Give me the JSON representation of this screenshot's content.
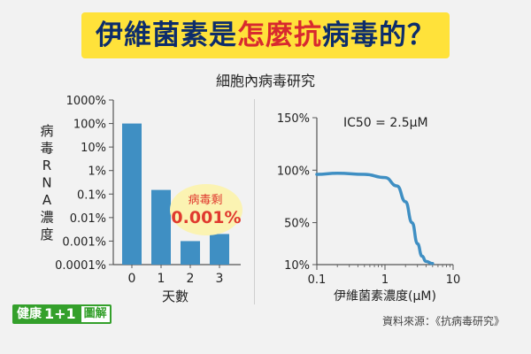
{
  "title": {
    "part1": "伊維菌素是",
    "part2": "怎麼抗",
    "part3": "病毒的？"
  },
  "subtitle": "細胞內病毒研究",
  "colors": {
    "bar": "#3f8fc3",
    "curve": "#3f8fc3",
    "title_navy": "#0d2d6b",
    "title_red": "#d8292f",
    "banner": "#ffe23a",
    "callout_red": "#e03a2f",
    "callout_bg": "#fbf3b2",
    "logo_green": "#34a02b"
  },
  "chart_data": [
    {
      "type": "bar",
      "categories": [
        "0",
        "1",
        "2",
        "3"
      ],
      "values": [
        100,
        0.15,
        0.001,
        0.002
      ],
      "yscale": "log",
      "ylim": [
        0.0001,
        1000
      ],
      "yticks": [
        "0.0001%",
        "0.001%",
        "0.01%",
        "0.1%",
        "1%",
        "10%",
        "100%",
        "1000%"
      ],
      "xlabel": "天數",
      "ylabel_chars": [
        "病",
        "毒",
        "R",
        "N",
        "A",
        "濃",
        "度"
      ],
      "annotation": {
        "label": "病毒剩",
        "value": "0.001%"
      }
    },
    {
      "type": "line",
      "xscale": "log",
      "xlim": [
        0.1,
        10
      ],
      "ylim": [
        10,
        150
      ],
      "xticks": [
        "0.1",
        "1",
        "10"
      ],
      "yticks": [
        "10%",
        "50%",
        "100%",
        "150%"
      ],
      "xlabel": "伊維菌素濃度(μM)",
      "annotation": "IC50 = 2.5μM",
      "series": [
        {
          "x": [
            0.1,
            0.2,
            0.5,
            1,
            1.5,
            2,
            2.5,
            3,
            3.5,
            4,
            5
          ],
          "y": [
            96,
            97,
            96,
            93,
            85,
            70,
            50,
            30,
            18,
            13,
            11
          ]
        }
      ]
    }
  ],
  "footer": {
    "logo_main": "健康",
    "logo_one": "1+1",
    "logo_tag": "圖解",
    "source": "資料來源：《抗病毒研究》"
  }
}
